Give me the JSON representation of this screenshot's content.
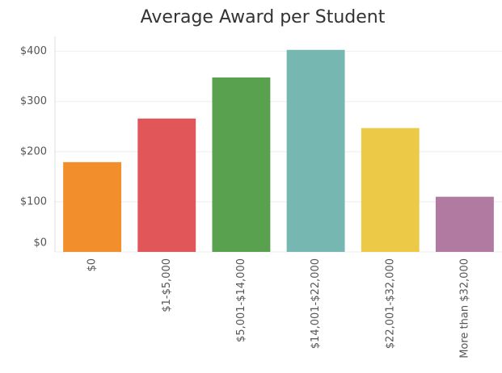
{
  "chart_data": {
    "type": "bar",
    "title": "Average Award per Student",
    "categories": [
      "$0",
      "$1-$5,000",
      "$5,001-$14,000",
      "$14,001-$22,000",
      "$22,001-$32,000",
      "More than $32,000"
    ],
    "values": [
      179,
      266,
      348,
      403,
      247,
      110
    ],
    "colors": [
      "#f28e2b",
      "#e15759",
      "#59a14f",
      "#76b7b2",
      "#edc948",
      "#b07aa1"
    ],
    "ylim": [
      0,
      430
    ],
    "yticks": [
      {
        "value": 0,
        "label": "$0"
      },
      {
        "value": 100,
        "label": "$100"
      },
      {
        "value": 200,
        "label": "$200"
      },
      {
        "value": 300,
        "label": "$300"
      },
      {
        "value": 400,
        "label": "$400"
      }
    ],
    "grid": true
  }
}
